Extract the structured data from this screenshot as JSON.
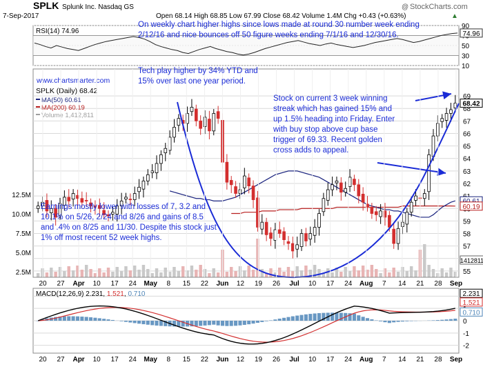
{
  "header": {
    "symbol": "SPLK",
    "company": "Splunk Inc.",
    "exchange": "Nasdaq GS",
    "date": "7-Sep-2017",
    "ohlc": "Open 68.14  High 68.85  Low 67.99  Close 68.42  Volume 1.4M  Chg +0.43 (+0.63%)",
    "up_arrow": "▲",
    "logo_prefix": "@",
    "logo": "StockCharts.com"
  },
  "rsi": {
    "label": "RSI(14) 74.96",
    "axis_ticks": [
      "90",
      "70",
      "50",
      "30",
      "10"
    ],
    "tag": "74.96",
    "values": [
      55,
      52,
      48,
      45,
      50,
      47,
      44,
      42,
      40,
      44,
      48,
      52,
      55,
      58,
      60,
      62,
      64,
      66,
      68,
      66,
      63,
      58,
      52,
      48,
      45,
      42,
      40,
      36,
      34,
      38,
      42,
      45,
      48,
      44,
      41,
      38,
      36,
      33,
      31,
      33,
      36,
      40,
      44,
      47,
      50,
      53,
      56,
      58,
      60,
      57,
      54,
      52,
      50,
      53,
      55,
      52,
      50,
      48,
      46,
      48,
      50,
      53,
      56,
      58,
      60,
      62,
      64,
      62,
      59,
      56,
      58,
      61,
      64,
      67,
      70,
      72,
      74,
      75
    ]
  },
  "price": {
    "watermark": "www.chartsmarter.com",
    "label": "SPLK (Daily) 68.42",
    "legend": [
      {
        "label": "MA(50) 60.61",
        "color": "#1a237e"
      },
      {
        "label": "MA(200) 60.19",
        "color": "#b71c1c"
      },
      {
        "label": "Volume 1,412,811",
        "color": "#9e9e9e"
      }
    ],
    "axis_ticks": [
      "69",
      "68",
      "67",
      "66",
      "65",
      "64",
      "63",
      "62",
      "61",
      "60",
      "59",
      "58",
      "57",
      "56",
      "55"
    ],
    "tags": {
      "close": "68.42",
      "ma50": "60.61",
      "ma200": "60.19",
      "volume": "1412811"
    },
    "volume_ticks": [
      "12.5M",
      "10.0M",
      "7.5M",
      "5.0M",
      "2.5M"
    ]
  },
  "annotations": {
    "weekly": "On weekly chart higher highs since lows made at round 30 number week ending\n2/12/16 and nice bounces off 50 figure weeks ending 7/1/16 and 12/30/16.",
    "tech": "Tech play higher by 34% YTD and\n15% over last one year period.",
    "streak": "Stock on current 3 week winning\nstreak which has gained 15% and\nup 1.5% heading into Friday. Enter\nwith buy stop above cup base\ntrigger of 69.33. Recent golden\ncross adds to appeal.",
    "earnings": "Earnings mostly lower with losses of 7, 3.2 and\n10.1% on 5/26, 2/24 and 8/26 and gains of 8.5\nand .4% on 8/25 and 11/30. Despite this stock just\n1% off most recent 52 week highs."
  },
  "macd": {
    "label": "MACD(12,26,9)",
    "macd_value": "2.231",
    "signal_value": "1.521",
    "hist_value": "0.710",
    "axis_ticks": [
      "2",
      "1",
      "0",
      "-1",
      "-2"
    ],
    "tags": {
      "macd": "2.231",
      "signal": "1.521",
      "hist": "0.710"
    }
  },
  "x_axis": {
    "labels": [
      "20",
      "27",
      "Apr",
      "10",
      "17",
      "24",
      "May",
      "8",
      "15",
      "22",
      "Jun",
      "12",
      "19",
      "26",
      "Jul",
      "10",
      "17",
      "24",
      "Aug",
      "7",
      "14",
      "21",
      "28",
      "Sep"
    ]
  },
  "colors": {
    "up": "#000000",
    "down": "#d32f2f",
    "annotation": "#1a2bd6",
    "ma50": "#1a237e",
    "ma200": "#b71c1c",
    "volume": "#e8b4b4",
    "hist": "#4f86b8",
    "grid": "#d9d9d9"
  },
  "chart_data": {
    "type": "candlestick",
    "title": "SPLK Splunk Inc. Nasdaq GS",
    "period": "Daily",
    "ylim": [
      54.5,
      69.5
    ],
    "last_close": 68.42,
    "close": [
      60.2,
      60.5,
      59.8,
      60.0,
      59.3,
      60.4,
      60.9,
      60.6,
      61.2,
      60.8,
      60.5,
      60.6,
      60.2,
      60.1,
      60.0,
      59.5,
      59.4,
      59.7,
      60.2,
      60.6,
      60.9,
      60.7,
      61.2,
      61.7,
      62.2,
      62.7,
      63.0,
      63.6,
      64.3,
      64.8,
      65.7,
      66.5,
      67.2,
      66.8,
      67.6,
      68.1,
      67.0,
      66.4,
      67.3,
      66.2,
      67.6,
      67.2,
      63.7,
      62.1,
      61.9,
      61.2,
      61.5,
      62.6,
      61.8,
      60.7,
      58.5,
      58.9,
      57.9,
      57.6,
      58.3,
      58.0,
      57.5,
      57.2,
      56.6,
      57.1,
      58.0,
      57.4,
      58.0,
      58.5,
      59.6,
      60.8,
      61.5,
      61.9,
      62.2,
      61.3,
      61.6,
      62.5,
      61.9,
      61.0,
      60.5,
      60.1,
      59.6,
      59.5,
      59.8,
      59.3,
      58.5,
      57.2,
      58.4,
      58.9,
      59.7,
      60.5,
      61.0,
      60.8,
      61.2,
      64.3,
      65.8,
      66.8,
      67.2,
      67.6,
      67.9,
      68.42
    ],
    "ma50": [
      61.4,
      61.3,
      61.2,
      61.1,
      61.0,
      60.9,
      60.8,
      60.8,
      60.7,
      60.7,
      60.6,
      60.6,
      60.6,
      60.7,
      60.8,
      60.9,
      61.1,
      61.3,
      61.5,
      61.7,
      61.9,
      62.1,
      62.3,
      62.5,
      62.7,
      62.8,
      62.9,
      63.0,
      63.0,
      63.0,
      62.9,
      62.8,
      62.7,
      62.6,
      62.5,
      62.3,
      62.1,
      61.9,
      61.7,
      61.5,
      61.3,
      61.1,
      60.9,
      60.7,
      60.5,
      60.3,
      60.2,
      60.1,
      60.0,
      59.9,
      59.9,
      59.8,
      59.8,
      59.7,
      59.6,
      59.5,
      59.4,
      59.3,
      59.3,
      59.3,
      59.5,
      59.8,
      60.1,
      60.3,
      60.5,
      60.61
    ],
    "ma200": [
      59.6,
      59.6,
      59.6,
      59.7,
      59.7,
      59.7,
      59.7,
      59.8,
      59.8,
      59.8,
      59.8,
      59.9,
      59.9,
      59.9,
      59.9,
      59.9,
      60.0,
      60.0,
      60.0,
      60.0,
      60.0,
      60.0,
      60.0,
      60.0,
      60.1,
      60.1,
      60.1,
      60.1,
      60.1,
      60.1,
      60.1,
      60.1,
      60.1,
      60.1,
      60.1,
      60.1,
      60.1,
      60.1,
      60.1,
      60.2,
      60.2,
      60.2,
      60.2,
      60.2,
      60.2,
      60.2,
      60.2,
      60.2,
      60.2,
      60.2,
      60.2,
      60.19
    ]
  }
}
